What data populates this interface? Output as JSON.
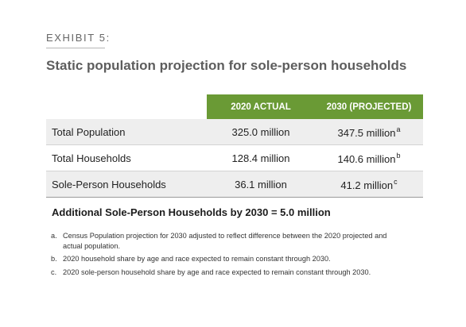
{
  "exhibit_label": "EXHIBIT 5:",
  "title": "Static population projection for sole-person households",
  "table": {
    "headers": [
      "",
      "2020 ACTUAL",
      "2030 (PROJECTED)"
    ],
    "header_color": "#6a9a35",
    "rows": [
      {
        "label": "Total Population",
        "actual": "325.0 million",
        "projected": "347.5 million",
        "note": "a"
      },
      {
        "label": "Total Households",
        "actual": "128.4 million",
        "projected": "140.6 million",
        "note": "b"
      },
      {
        "label": "Sole-Person Households",
        "actual": "36.1 million",
        "projected": "41.2 million",
        "note": "c"
      }
    ]
  },
  "summary": "Additional Sole-Person Households by 2030 = 5.0 million",
  "footnotes": [
    {
      "marker": "a.",
      "text": "Census Population projection for 2030 adjusted to reflect difference between the 2020 projected and actual population."
    },
    {
      "marker": "b.",
      "text": "2020 household share by age and race expected to remain constant through 2030."
    },
    {
      "marker": "c.",
      "text": "2020 sole-person household share by age and race expected to remain constant through 2030."
    }
  ]
}
